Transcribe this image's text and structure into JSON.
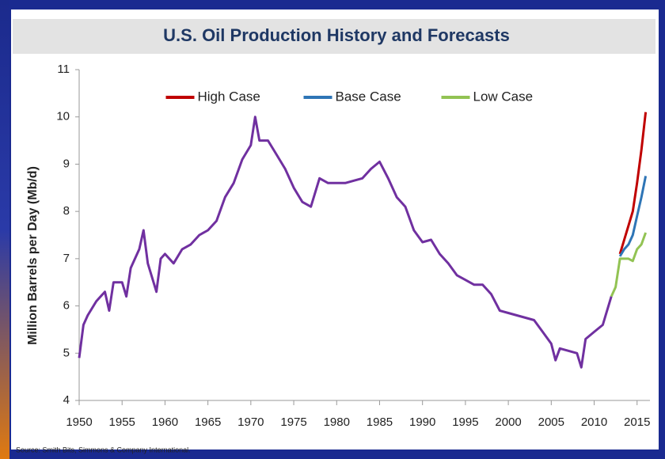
{
  "chart_data": {
    "type": "line",
    "title": "U.S. Oil Production History and Forecasts",
    "y_label": "Million Barrels per Day (Mb/d)",
    "source": "Source: Smith Bits, Simmons & Company International.",
    "xlim": [
      1950,
      2016.5
    ],
    "xticks": [
      1950,
      1955,
      1960,
      1965,
      1970,
      1975,
      1980,
      1985,
      1990,
      1995,
      2000,
      2005,
      2010,
      2015
    ],
    "ylim": [
      4,
      11
    ],
    "yticks": [
      4,
      5,
      6,
      7,
      8,
      9,
      10,
      11
    ],
    "grid": false,
    "legend": "top-center",
    "series": [
      {
        "color": "#7030a0",
        "x": [
          1950,
          1950.5,
          1951,
          1952,
          1953,
          1953.5,
          1954,
          1955,
          1955.5,
          1956,
          1957,
          1957.5,
          1958,
          1959,
          1959.5,
          1960,
          1961,
          1962,
          1963,
          1964,
          1965,
          1966,
          1967,
          1968,
          1969,
          1970,
          1970.5,
          1971,
          1972,
          1973,
          1974,
          1975,
          1976,
          1977,
          1978,
          1979,
          1980,
          1981,
          1982,
          1983,
          1984,
          1985,
          1986,
          1987,
          1988,
          1989,
          1990,
          1991,
          1992,
          1993,
          1994,
          1995,
          1996,
          1997,
          1998,
          1999,
          2000,
          2001,
          2002,
          2003,
          2004,
          2005,
          2005.5,
          2006,
          2007,
          2008,
          2008.5,
          2009,
          2010,
          2011,
          2012
        ],
        "values": [
          4.9,
          5.6,
          5.8,
          6.1,
          6.3,
          5.9,
          6.5,
          6.5,
          6.2,
          6.8,
          7.2,
          7.6,
          6.9,
          6.3,
          7.0,
          7.1,
          6.9,
          7.2,
          7.3,
          7.5,
          7.6,
          7.8,
          8.3,
          8.6,
          9.1,
          9.4,
          10.0,
          9.5,
          9.5,
          9.2,
          8.9,
          8.5,
          8.2,
          8.1,
          8.7,
          8.6,
          8.6,
          8.6,
          8.65,
          8.7,
          8.9,
          9.05,
          8.7,
          8.3,
          8.1,
          7.6,
          7.35,
          7.4,
          7.1,
          6.9,
          6.65,
          6.55,
          6.45,
          6.45,
          6.25,
          5.9,
          5.85,
          5.8,
          5.75,
          5.7,
          5.45,
          5.2,
          4.85,
          5.1,
          5.05,
          5.0,
          4.7,
          5.3,
          5.45,
          5.6,
          6.2
        ]
      },
      {
        "name": "High Case",
        "color": "#c00000",
        "x": [
          2013,
          2013.5,
          2014,
          2014.5,
          2015,
          2015.5,
          2016
        ],
        "values": [
          7.1,
          7.4,
          7.7,
          8.0,
          8.6,
          9.3,
          10.1
        ]
      },
      {
        "name": "Base Case",
        "color": "#2e75b6",
        "x": [
          2013,
          2013.5,
          2014,
          2014.5,
          2015,
          2015.5,
          2016
        ],
        "values": [
          7.05,
          7.2,
          7.3,
          7.5,
          7.9,
          8.3,
          8.75
        ]
      },
      {
        "name": "Low Case",
        "color": "#92c353",
        "x": [
          2012,
          2012.5,
          2013,
          2013.5,
          2014,
          2014.5,
          2015,
          2015.5,
          2016
        ],
        "values": [
          6.2,
          6.4,
          7.0,
          7.0,
          7.0,
          6.95,
          7.2,
          7.3,
          7.55
        ]
      }
    ]
  }
}
